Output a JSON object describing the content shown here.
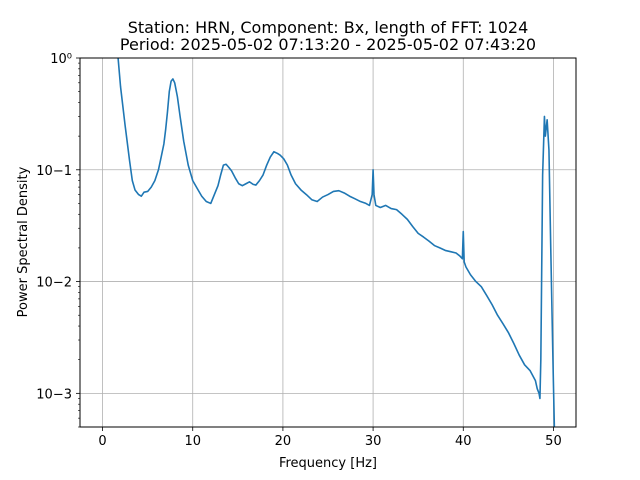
{
  "chart_data": {
    "type": "line",
    "title": "Station: HRN, Component: Bx, length of FFT: 1024",
    "subtitle": "Period: 2025-05-02 07:13:20 - 2025-05-02 07:43:20",
    "xlabel": "Frequency [Hz]",
    "ylabel": "Power Spectral Density",
    "xlim": [
      -2.5,
      52.5
    ],
    "ylim": [
      0.0005,
      1
    ],
    "yscale": "log",
    "grid": true,
    "x_ticks": [
      0,
      10,
      20,
      30,
      40,
      50
    ],
    "x_tick_labels": [
      "0",
      "10",
      "20",
      "30",
      "40",
      "50"
    ],
    "y_ticks": [
      0.001,
      0.01,
      0.1,
      1
    ],
    "y_tick_labels": [
      "10−3",
      "10−2",
      "10−1",
      "10⁰"
    ],
    "series": [
      {
        "color": "#1f77b4",
        "x": [
          1.7,
          2.0,
          2.5,
          3.0,
          3.3,
          3.6,
          4.0,
          4.3,
          4.6,
          5.0,
          5.4,
          5.8,
          6.2,
          6.5,
          6.8,
          7.0,
          7.2,
          7.4,
          7.6,
          7.8,
          8.0,
          8.3,
          8.6,
          9.0,
          9.5,
          10.0,
          10.5,
          11.0,
          11.5,
          12.0,
          12.4,
          12.8,
          13.1,
          13.4,
          13.7,
          14.0,
          14.3,
          14.7,
          15.1,
          15.5,
          15.9,
          16.3,
          16.7,
          17.0,
          17.4,
          17.8,
          18.2,
          18.6,
          19.0,
          19.4,
          19.7,
          20.1,
          20.5,
          20.9,
          21.4,
          22.0,
          22.6,
          23.2,
          23.8,
          24.4,
          25.0,
          25.6,
          26.2,
          26.8,
          27.4,
          28.0,
          28.6,
          29.2,
          29.6,
          29.9,
          30.0,
          30.1,
          30.3,
          30.8,
          31.4,
          32.0,
          32.6,
          33.2,
          33.8,
          34.4,
          35.0,
          35.6,
          36.2,
          36.8,
          37.4,
          38.0,
          38.6,
          39.2,
          39.6,
          39.9,
          40.0,
          40.1,
          40.3,
          40.8,
          41.4,
          42.0,
          42.6,
          43.2,
          43.8,
          44.4,
          45.0,
          45.6,
          46.2,
          46.8,
          47.4,
          48.0,
          48.2,
          48.4,
          48.5,
          48.6,
          48.8,
          49.0,
          49.1,
          49.3,
          49.5,
          49.7,
          49.9,
          50.0,
          50.1
        ],
        "y": [
          1.05,
          0.55,
          0.25,
          0.12,
          0.08,
          0.066,
          0.06,
          0.058,
          0.063,
          0.064,
          0.07,
          0.08,
          0.1,
          0.13,
          0.17,
          0.23,
          0.33,
          0.5,
          0.62,
          0.65,
          0.6,
          0.45,
          0.3,
          0.18,
          0.11,
          0.08,
          0.068,
          0.058,
          0.052,
          0.05,
          0.06,
          0.072,
          0.09,
          0.11,
          0.112,
          0.105,
          0.098,
          0.085,
          0.075,
          0.072,
          0.075,
          0.078,
          0.074,
          0.073,
          0.08,
          0.09,
          0.11,
          0.13,
          0.145,
          0.14,
          0.135,
          0.125,
          0.11,
          0.09,
          0.075,
          0.066,
          0.06,
          0.054,
          0.052,
          0.057,
          0.06,
          0.064,
          0.065,
          0.062,
          0.058,
          0.055,
          0.052,
          0.05,
          0.048,
          0.06,
          0.1,
          0.06,
          0.048,
          0.046,
          0.048,
          0.045,
          0.044,
          0.04,
          0.036,
          0.031,
          0.027,
          0.025,
          0.023,
          0.021,
          0.02,
          0.019,
          0.0185,
          0.018,
          0.017,
          0.016,
          0.028,
          0.015,
          0.0135,
          0.0115,
          0.01,
          0.009,
          0.0075,
          0.0062,
          0.005,
          0.0042,
          0.0035,
          0.0028,
          0.0022,
          0.0018,
          0.0016,
          0.0013,
          0.0011,
          0.001,
          0.0009,
          0.002,
          0.09,
          0.3,
          0.2,
          0.28,
          0.15,
          0.02,
          0.003,
          0.0012,
          0.0005
        ]
      }
    ]
  }
}
